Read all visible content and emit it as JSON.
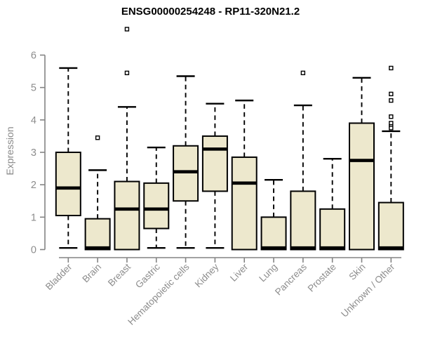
{
  "title": "ENSG00000254248 - RP11-320N21.2",
  "chart_data": {
    "type": "boxplot",
    "title": "ENSG00000254248 - RP11-320N21.2",
    "xlabel": "",
    "ylabel": "Expression",
    "ylim": [
      0,
      6
    ],
    "yticks": [
      0,
      1,
      2,
      3,
      4,
      5,
      6
    ],
    "grid": false,
    "legend": "none",
    "categories": [
      "Bladder",
      "Brain",
      "Breast",
      "Gastric",
      "Hematopoietic cells",
      "Kidney",
      "Liver",
      "Lung",
      "Pancreas",
      "Prostate",
      "Skin",
      "Unknown / Other"
    ],
    "series": [
      {
        "name": "Bladder",
        "whisker_low": 0.05,
        "q1": 1.05,
        "median": 1.9,
        "q3": 3.0,
        "whisker_high": 5.6,
        "outliers": []
      },
      {
        "name": "Brain",
        "whisker_low": 0,
        "q1": 0,
        "median": 0.05,
        "q3": 0.95,
        "whisker_high": 2.45,
        "outliers": [
          3.45
        ]
      },
      {
        "name": "Breast",
        "whisker_low": 0,
        "q1": 0,
        "median": 1.25,
        "q3": 2.1,
        "whisker_high": 4.4,
        "outliers": [
          6.8,
          5.45
        ]
      },
      {
        "name": "Gastric",
        "whisker_low": 0.05,
        "q1": 0.65,
        "median": 1.25,
        "q3": 2.05,
        "whisker_high": 3.15,
        "outliers": []
      },
      {
        "name": "Hematopoietic cells",
        "whisker_low": 0.05,
        "q1": 1.5,
        "median": 2.4,
        "q3": 3.2,
        "whisker_high": 5.35,
        "outliers": []
      },
      {
        "name": "Kidney",
        "whisker_low": 0.05,
        "q1": 1.8,
        "median": 3.1,
        "q3": 3.5,
        "whisker_high": 4.5,
        "outliers": []
      },
      {
        "name": "Liver",
        "whisker_low": 0,
        "q1": 0,
        "median": 2.05,
        "q3": 2.85,
        "whisker_high": 4.6,
        "outliers": []
      },
      {
        "name": "Lung",
        "whisker_low": 0,
        "q1": 0,
        "median": 0.05,
        "q3": 1.0,
        "whisker_high": 2.15,
        "outliers": []
      },
      {
        "name": "Pancreas",
        "whisker_low": 0,
        "q1": 0,
        "median": 0.05,
        "q3": 1.8,
        "whisker_high": 4.45,
        "outliers": [
          5.45
        ]
      },
      {
        "name": "Prostate",
        "whisker_low": 0,
        "q1": 0,
        "median": 0.05,
        "q3": 1.25,
        "whisker_high": 2.8,
        "outliers": []
      },
      {
        "name": "Skin",
        "whisker_low": 0,
        "q1": 0,
        "median": 2.75,
        "q3": 3.9,
        "whisker_high": 5.3,
        "outliers": []
      },
      {
        "name": "Unknown / Other",
        "whisker_low": 0,
        "q1": 0,
        "median": 0.05,
        "q3": 1.45,
        "whisker_high": 3.65,
        "outliers": [
          5.6,
          4.8,
          4.6,
          4.1,
          3.9,
          3.8,
          3.75
        ]
      }
    ]
  },
  "style": {
    "box_fill": "#EDE8CD",
    "box_border": "#000000",
    "median_color": "#000000",
    "whisker_color": "#000000",
    "outlier_fill": "#ffffff",
    "axis_color": "#848484",
    "tick_label_color": "#8c8c8c",
    "title_color": "#000000"
  }
}
